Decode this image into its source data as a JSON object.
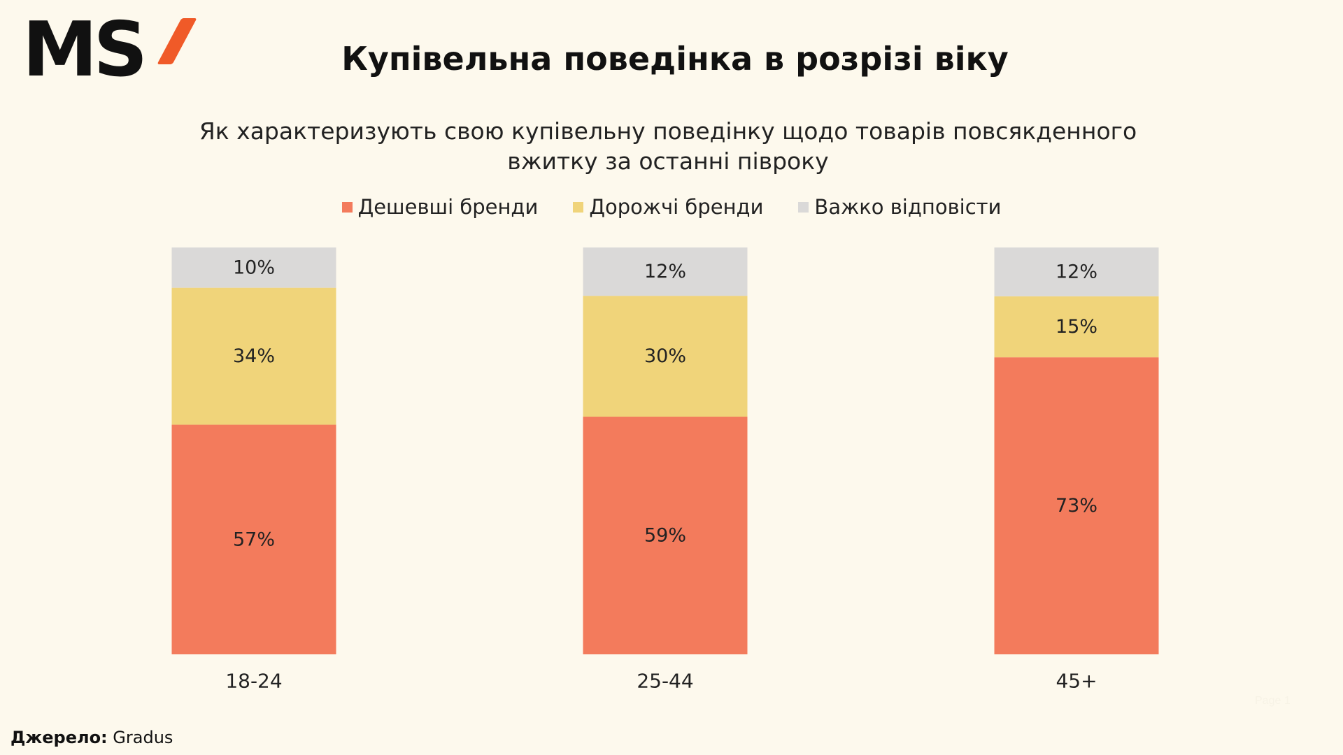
{
  "logo": {
    "text": "MS"
  },
  "header": {
    "title": "Купівельна поведінка в розрізі віку"
  },
  "chart_data": {
    "type": "bar",
    "stacked": true,
    "title": "Купівельна поведінка в розрізі віку",
    "subtitle": "Як характеризують свою купівельну поведінку щодо товарів повсякденного вжитку за останні півроку",
    "categories": [
      "18-24",
      "25-44",
      "45+"
    ],
    "series": [
      {
        "name": "Дешевші бренди",
        "color": "#F37B5C",
        "values": [
          57,
          59,
          73
        ],
        "labels": [
          "57%",
          "59%",
          "73%"
        ]
      },
      {
        "name": "Дорожчі бренди",
        "color": "#F0D47A",
        "values": [
          34,
          30,
          15
        ],
        "labels": [
          "34%",
          "30%",
          "15%"
        ]
      },
      {
        "name": "Важко відповісти",
        "color": "#DAD9D8",
        "values": [
          10,
          12,
          12
        ],
        "labels": [
          "10%",
          "12%",
          "12%"
        ]
      }
    ],
    "unit": "%",
    "legend_position": "top",
    "grid": false
  },
  "footer": {
    "source_label": "Джерело:",
    "source_value": "Gradus",
    "page_text": "Page 1"
  }
}
